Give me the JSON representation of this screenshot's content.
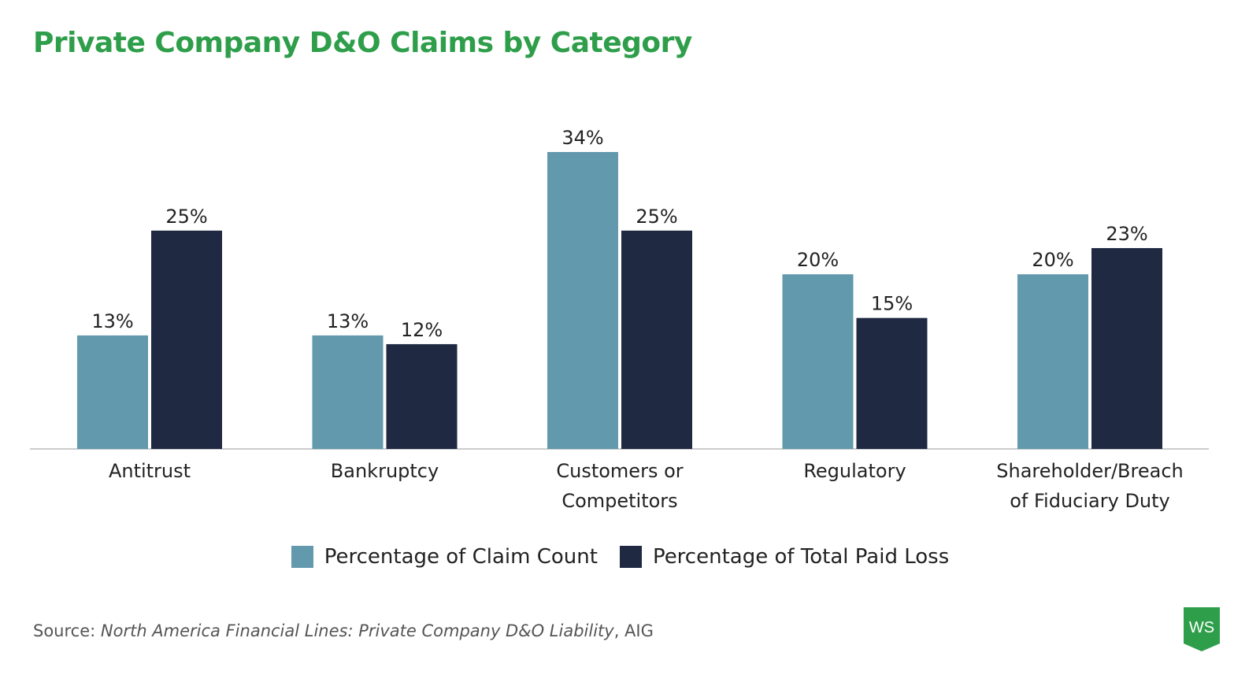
{
  "title": "Private Company D&O Claims by Category",
  "chart_data": {
    "type": "bar",
    "title": "Private Company D&O Claims by Category",
    "categories": [
      [
        "Antitrust"
      ],
      [
        "Bankruptcy"
      ],
      [
        "Customers or",
        "Competitors"
      ],
      [
        "Regulatory"
      ],
      [
        "Shareholder/Breach",
        "of Fiduciary Duty"
      ]
    ],
    "series": [
      {
        "name": "Percentage of Claim Count",
        "color": "#6299ac",
        "values": [
          13,
          13,
          34,
          20,
          20
        ]
      },
      {
        "name": "Percentage of Total Paid Loss",
        "color": "#1f2942",
        "values": [
          25,
          12,
          25,
          15,
          23
        ]
      }
    ],
    "value_suffix": "%",
    "ylim": [
      0,
      34
    ],
    "grid": false,
    "legend": "bottom"
  },
  "source": {
    "prefix": "Source: ",
    "publication": "North America Financial Lines: Private Company D&O Liability",
    "suffix": ", AIG"
  },
  "logo": "WS"
}
